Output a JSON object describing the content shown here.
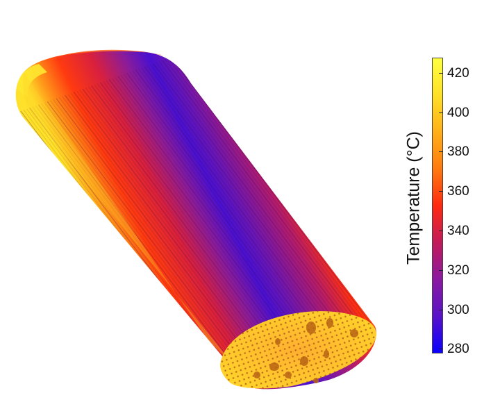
{
  "colorbar": {
    "title": "Temperature (°C)",
    "min": 278,
    "max": 428,
    "ticks": [
      280,
      300,
      320,
      340,
      360,
      380,
      400,
      420
    ],
    "colors": [
      "#0a00ff",
      "#5a12c8",
      "#8a1aa0",
      "#c21a5a",
      "#ff2a10",
      "#ff7a10",
      "#ffb018",
      "#ffe028",
      "#ffff40"
    ]
  }
}
